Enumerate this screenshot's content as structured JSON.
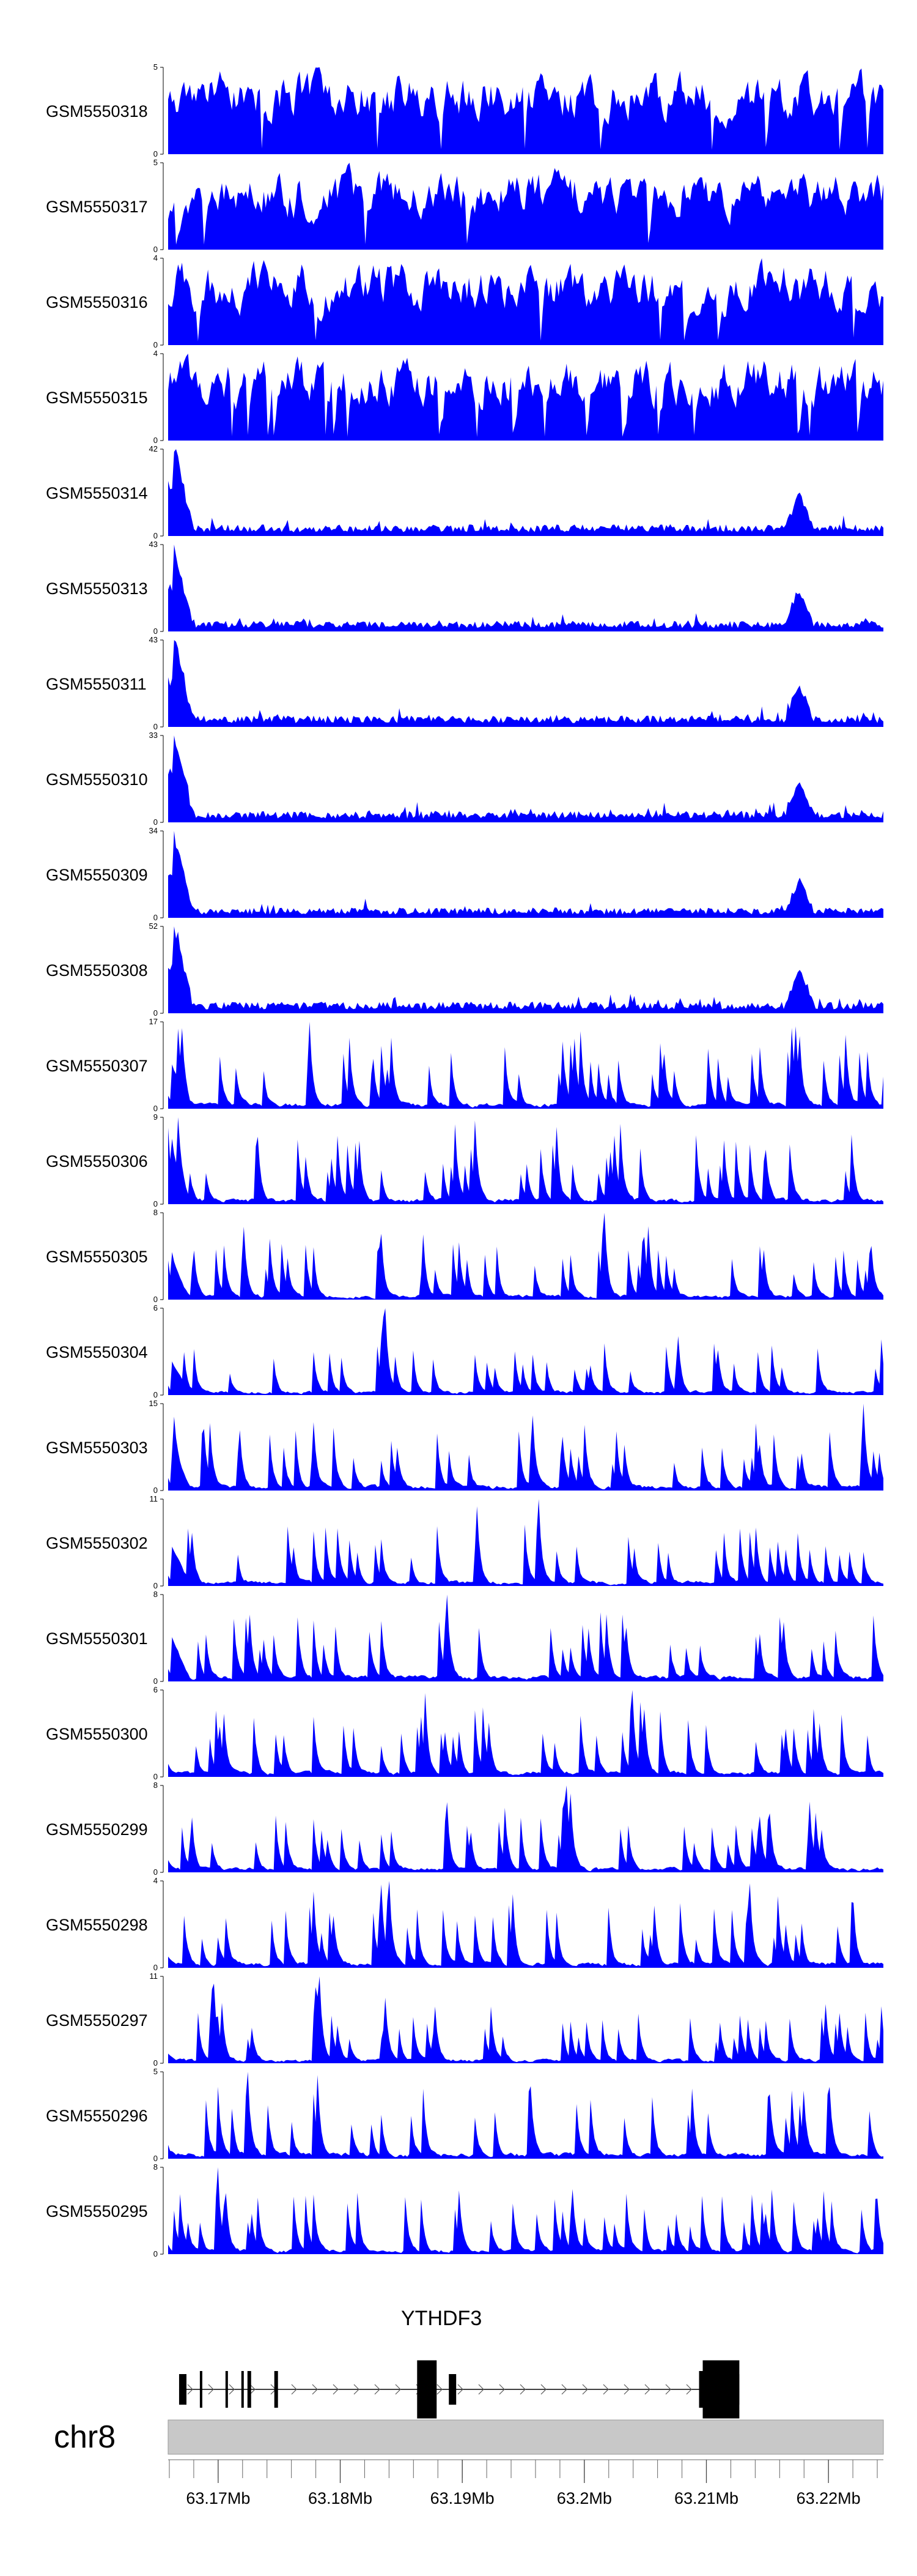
{
  "chart_data": {
    "type": "area",
    "fill_color": "#0000ff",
    "tracks": [
      {
        "name": "GSM5550318",
        "ymax": 5
      },
      {
        "name": "GSM5550317",
        "ymax": 5
      },
      {
        "name": "GSM5550316",
        "ymax": 4
      },
      {
        "name": "GSM5550315",
        "ymax": 4
      },
      {
        "name": "GSM5550314",
        "ymax": 42
      },
      {
        "name": "GSM5550313",
        "ymax": 43
      },
      {
        "name": "GSM5550311",
        "ymax": 43
      },
      {
        "name": "GSM5550310",
        "ymax": 33
      },
      {
        "name": "GSM5550309",
        "ymax": 34
      },
      {
        "name": "GSM5550308",
        "ymax": 52
      },
      {
        "name": "GSM5550307",
        "ymax": 17
      },
      {
        "name": "GSM5550306",
        "ymax": 9
      },
      {
        "name": "GSM5550305",
        "ymax": 8
      },
      {
        "name": "GSM5550304",
        "ymax": 6
      },
      {
        "name": "GSM5550303",
        "ymax": 15
      },
      {
        "name": "GSM5550302",
        "ymax": 11
      },
      {
        "name": "GSM5550301",
        "ymax": 8
      },
      {
        "name": "GSM5550300",
        "ymax": 6
      },
      {
        "name": "GSM5550299",
        "ymax": 8
      },
      {
        "name": "GSM5550298",
        "ymax": 4
      },
      {
        "name": "GSM5550297",
        "ymax": 11
      },
      {
        "name": "GSM5550296",
        "ymax": 5
      },
      {
        "name": "GSM5550295",
        "ymax": 8
      }
    ],
    "gene": {
      "name": "YTHDF3",
      "strand": "+",
      "start_mb": 63.1668,
      "end_mb": 63.2127,
      "exons_mb": [
        [
          63.1668,
          63.1674
        ],
        [
          63.1685,
          63.1687
        ],
        [
          63.1706,
          63.1708
        ],
        [
          63.1719,
          63.1721
        ],
        [
          63.1724,
          63.1727
        ],
        [
          63.1746,
          63.1749
        ],
        [
          63.1863,
          63.1879
        ],
        [
          63.1889,
          63.1895
        ],
        [
          63.2094,
          63.2097
        ],
        [
          63.2097,
          63.2127
        ]
      ]
    },
    "chromosome": "chr8",
    "x_range_mb": [
      63.1659,
      63.2245
    ],
    "axis_ticks": [
      "63.17Mb",
      "63.18Mb",
      "63.19Mb",
      "63.2Mb",
      "63.21Mb",
      "63.22Mb"
    ],
    "axis_tick_values": [
      63.17,
      63.18,
      63.19,
      63.2,
      63.21,
      63.22
    ],
    "minor_tick_step_mb": 0.002
  }
}
